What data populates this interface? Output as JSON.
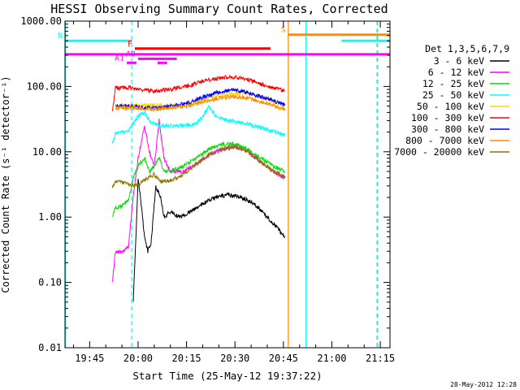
{
  "chart_data": {
    "type": "line",
    "title": "HESSI Observing Summary Count Rates, Corrected",
    "xlabel": "Start Time (25-May-12 19:37:22)",
    "ylabel": "Corrected Count Rate (s⁻¹ detector⁻¹)",
    "y_scale": "log",
    "xlim": [
      "19:37:22",
      "21:18:00"
    ],
    "ylim": [
      0.01,
      1000
    ],
    "x_ticks": [
      "19:45",
      "20:00",
      "20:15",
      "20:30",
      "20:45",
      "21:00",
      "21:15"
    ],
    "y_ticks": [
      "0.01",
      "0.10",
      "1.00",
      "10.00",
      "100.00",
      "1000.00"
    ],
    "grid": false,
    "legend": {
      "title": "Det 1,3,5,6,7,9",
      "placement": "right",
      "entries": [
        {
          "label": "3 - 6 keV",
          "color": "#000000"
        },
        {
          "label": "6 - 12 keV",
          "color": "#ff00ff"
        },
        {
          "label": "12 - 25 keV",
          "color": "#00dd00"
        },
        {
          "label": "25 - 50 keV",
          "color": "#00ffff"
        },
        {
          "label": "50 - 100 keV",
          "color": "#ffd700"
        },
        {
          "label": "100 - 300 keV",
          "color": "#ff0000"
        },
        {
          "label": "300 - 800 keV",
          "color": "#0000ff"
        },
        {
          "label": "800 - 7000 keV",
          "color": "#ff8c00"
        },
        {
          "label": "7000 - 20000 keV",
          "color": "#8b7500"
        }
      ]
    },
    "series": [
      {
        "name": "3 - 6 keV",
        "color": "#000000",
        "x": [
          "19:58:30",
          "19:59:30",
          "20:00:00",
          "20:01:00",
          "20:02:00",
          "20:03:00",
          "20:04:00",
          "20:05:30",
          "20:07:00",
          "20:08:00",
          "20:10:00",
          "20:13:00",
          "20:16:00",
          "20:20:00",
          "20:24:00",
          "20:28:00",
          "20:32:00",
          "20:36:00",
          "20:40:00",
          "20:43:00",
          "20:45:30"
        ],
        "y": [
          0.05,
          0.8,
          4.0,
          1.5,
          0.5,
          0.3,
          0.4,
          3.0,
          2.0,
          1.0,
          1.2,
          1.0,
          1.2,
          1.6,
          2.0,
          2.2,
          2.0,
          1.6,
          1.0,
          0.7,
          0.5
        ]
      },
      {
        "name": "6 - 12 keV",
        "color": "#ff00ff",
        "x": [
          "19:52:00",
          "19:53:00",
          "19:55:00",
          "19:57:00",
          "19:58:30",
          "20:00:00",
          "20:02:00",
          "20:03:30",
          "20:05:00",
          "20:06:30",
          "20:08:00",
          "20:10:00",
          "20:14:00",
          "20:18:00",
          "20:22:00",
          "20:26:00",
          "20:30:00",
          "20:34:00",
          "20:38:00",
          "20:42:00",
          "20:45:30"
        ],
        "y": [
          0.1,
          0.3,
          0.3,
          0.35,
          2.0,
          8.0,
          25.0,
          10.0,
          6.0,
          30.0,
          8.0,
          5.0,
          5.0,
          6.5,
          9.0,
          11.0,
          12.0,
          10.0,
          7.0,
          5.0,
          4.0
        ]
      },
      {
        "name": "12 - 25 keV",
        "color": "#00dd00",
        "x": [
          "19:52:00",
          "19:53:00",
          "19:55:00",
          "19:57:00",
          "19:58:30",
          "20:00:00",
          "20:02:00",
          "20:03:30",
          "20:05:00",
          "20:06:30",
          "20:08:00",
          "20:10:00",
          "20:14:00",
          "20:18:00",
          "20:22:00",
          "20:26:00",
          "20:30:00",
          "20:34:00",
          "20:38:00",
          "20:42:00",
          "20:45:30"
        ],
        "y": [
          1.0,
          1.4,
          1.5,
          1.8,
          4.0,
          6.0,
          8.0,
          5.0,
          6.0,
          8.0,
          5.0,
          5.0,
          6.0,
          8.0,
          11.0,
          13.0,
          13.0,
          11.0,
          8.0,
          6.0,
          5.0
        ]
      },
      {
        "name": "25 - 50 keV",
        "color": "#00ffff",
        "x": [
          "19:52:00",
          "19:53:00",
          "19:55:00",
          "19:57:00",
          "19:58:30",
          "20:00:00",
          "20:02:00",
          "20:03:30",
          "20:05:00",
          "20:07:00",
          "20:10:00",
          "20:14:00",
          "20:18:00",
          "20:20:00",
          "20:22:00",
          "20:24:00",
          "20:28:00",
          "20:32:00",
          "20:36:00",
          "20:40:00",
          "20:45:30"
        ],
        "y": [
          13.0,
          20.0,
          20.0,
          21.0,
          28.0,
          35.0,
          40.0,
          30.0,
          27.0,
          25.0,
          25.0,
          25.0,
          27.0,
          35.0,
          50.0,
          35.0,
          30.0,
          28.0,
          25.0,
          22.0,
          18.0
        ]
      },
      {
        "name": "50 - 100 keV",
        "color": "#ffd700",
        "x": [
          "19:53:00",
          "19:58:00",
          "20:00:00",
          "20:05:00",
          "20:10:00",
          "20:15:00",
          "20:18:00",
          "20:20:00",
          "20:22:00",
          "20:24:00",
          "20:28:00",
          "20:32:00",
          "20:36:00",
          "20:40:00",
          "20:45:30"
        ],
        "y": [
          48.0,
          50.0,
          52.0,
          52.0,
          50.0,
          52.0,
          56.0,
          63.0,
          72.0,
          68.0,
          75.0,
          80.0,
          75.0,
          65.0,
          50.0
        ]
      },
      {
        "name": "100 - 300 keV",
        "color": "#ff0000",
        "x": [
          "19:52:00",
          "19:53:00",
          "19:58:00",
          "20:02:00",
          "20:05:00",
          "20:10:00",
          "20:15:00",
          "20:20:00",
          "20:25:00",
          "20:28:00",
          "20:32:00",
          "20:36:00",
          "20:40:00",
          "20:45:30"
        ],
        "y": [
          40.0,
          95.0,
          95.0,
          87.0,
          85.0,
          90.0,
          100.0,
          120.0,
          135.0,
          140.0,
          135.0,
          120.0,
          100.0,
          85.0
        ]
      },
      {
        "name": "300 - 800 keV",
        "color": "#0000ff",
        "x": [
          "19:53:00",
          "19:58:00",
          "20:02:00",
          "20:06:00",
          "20:10:00",
          "20:15:00",
          "20:20:00",
          "20:25:00",
          "20:28:00",
          "20:32:00",
          "20:36:00",
          "20:40:00",
          "20:45:30"
        ],
        "y": [
          50.0,
          50.0,
          47.0,
          47.0,
          50.0,
          55.0,
          68.0,
          82.0,
          88.0,
          85.0,
          75.0,
          65.0,
          52.0
        ]
      },
      {
        "name": "800 - 7000 keV",
        "color": "#ff8c00",
        "x": [
          "19:53:00",
          "19:58:00",
          "20:02:00",
          "20:06:00",
          "20:10:00",
          "20:15:00",
          "20:20:00",
          "20:25:00",
          "20:30:00",
          "20:35:00",
          "20:40:00",
          "20:45:30"
        ],
        "y": [
          47.0,
          47.0,
          45.0,
          45.0,
          47.0,
          50.0,
          58.0,
          66.0,
          70.0,
          65.0,
          55.0,
          45.0
        ]
      },
      {
        "name": "7000 - 20000 keV",
        "color": "#8b7500",
        "x": [
          "19:52:00",
          "19:53:00",
          "19:56:00",
          "19:58:30",
          "20:00:00",
          "20:03:00",
          "20:05:00",
          "20:07:00",
          "20:10:00",
          "20:14:00",
          "20:18:00",
          "20:22:00",
          "20:26:00",
          "20:30:00",
          "20:34:00",
          "20:38:00",
          "20:42:00",
          "20:45:30"
        ],
        "y": [
          2.8,
          3.5,
          3.3,
          3.0,
          3.2,
          4.0,
          4.5,
          3.5,
          3.6,
          4.5,
          6.5,
          9.0,
          11.0,
          12.0,
          10.0,
          7.0,
          5.0,
          4.0
        ]
      }
    ],
    "state_bars": [
      {
        "label": "N",
        "color": "#00ffff",
        "y": 500,
        "segments": [
          [
            "19:37:22",
            "19:58:00"
          ],
          [
            "21:03:00",
            "21:18:00"
          ]
        ]
      },
      {
        "label": "F",
        "color": "#ff0000",
        "y": 380,
        "segments": [
          [
            "19:59:00",
            "20:41:00"
          ]
        ]
      },
      {
        "label": "S",
        "color": "#ff8c00",
        "y": 620,
        "segments": [
          [
            "20:46:30",
            "21:18:00"
          ]
        ]
      },
      {
        "label": "",
        "color": "#ff00ff",
        "y": 310,
        "segments": [
          [
            "19:37:22",
            "21:18:00"
          ]
        ]
      },
      {
        "label": "A0",
        "color": "#ff00ff",
        "y": 265,
        "segments": [
          [
            "20:00:00",
            "20:12:00"
          ]
        ]
      },
      {
        "label": "A1",
        "color": "#ff00ff",
        "y": 230,
        "segments": [
          [
            "19:56:30",
            "19:59:30"
          ],
          [
            "20:06:00",
            "20:09:00"
          ]
        ]
      }
    ],
    "vertical_markers": [
      {
        "time": "19:37:30",
        "color": "#00ffff",
        "style": "solid"
      },
      {
        "time": "19:58:00",
        "color": "#00ffff",
        "style": "dashed"
      },
      {
        "time": "20:46:30",
        "color": "#ff8c00",
        "style": "solid"
      },
      {
        "time": "20:52:00",
        "color": "#00ffff",
        "style": "solid"
      },
      {
        "time": "21:14:00",
        "color": "#ff8c00",
        "style": "dashed"
      },
      {
        "time": "21:14:10",
        "color": "#00ffff",
        "style": "dashed"
      }
    ]
  },
  "footer": {
    "timestamp": "28-May-2012 12:28"
  }
}
